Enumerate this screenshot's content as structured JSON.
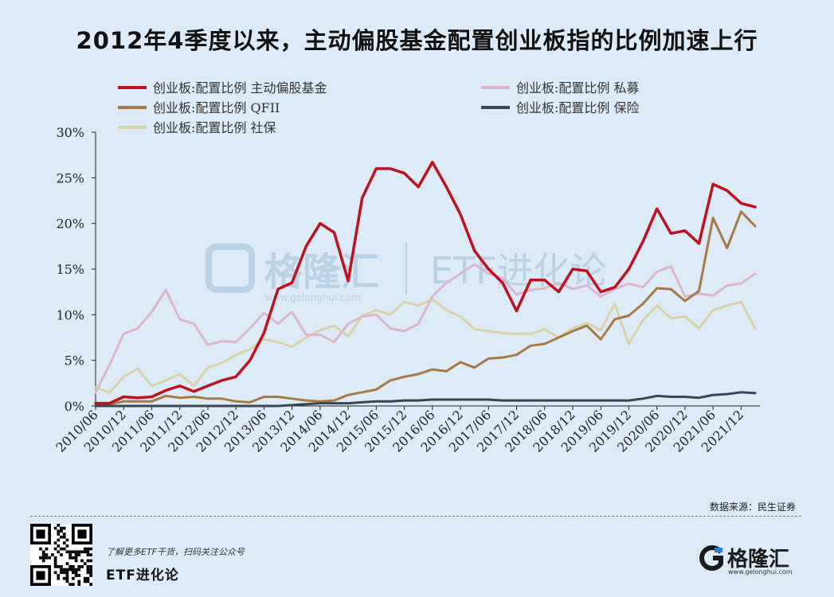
{
  "title": "2012年4季度以来，主动偏股基金配置创业板指的比例加速上行",
  "source": "数据来源：民生证券",
  "footer": {
    "slogan": "了解更多ETF干货，扫码关注公众号",
    "account": "ETF进化论"
  },
  "brand": {
    "name": "格隆汇",
    "url": "www.gelonghui.com"
  },
  "watermark": {
    "brand": "格隆汇",
    "url": "www.gelonghui.com",
    "account": "ETF进化论"
  },
  "chart_data": {
    "type": "line",
    "ylim": [
      0,
      30
    ],
    "yticks": [
      "0%",
      "5%",
      "10%",
      "15%",
      "20%",
      "25%",
      "30%"
    ],
    "x_labels": [
      "2010/06",
      "2010/12",
      "2011/06",
      "2011/12",
      "2012/06",
      "2012/12",
      "2013/06",
      "2013/12",
      "2014/06",
      "2014/12",
      "2015/06",
      "2015/12",
      "2016/06",
      "2016/12",
      "2017/06",
      "2017/12",
      "2018/06",
      "2018/12",
      "2019/06",
      "2019/12",
      "2020/06",
      "2020/12",
      "2021/06",
      "2021/12"
    ],
    "x_label_quarter_index": [
      0,
      2,
      4,
      6,
      8,
      10,
      12,
      14,
      16,
      18,
      20,
      22,
      24,
      26,
      28,
      30,
      32,
      34,
      36,
      38,
      40,
      42,
      44,
      46
    ],
    "x_quarters": [
      "2010/06",
      "2010/09",
      "2010/12",
      "2011/03",
      "2011/06",
      "2011/09",
      "2011/12",
      "2012/03",
      "2012/06",
      "2012/09",
      "2012/12",
      "2013/03",
      "2013/06",
      "2013/09",
      "2013/12",
      "2014/03",
      "2014/06",
      "2014/09",
      "2014/12",
      "2015/03",
      "2015/06",
      "2015/09",
      "2015/12",
      "2016/03",
      "2016/06",
      "2016/09",
      "2016/12",
      "2017/03",
      "2017/06",
      "2017/09",
      "2017/12",
      "2018/03",
      "2018/06",
      "2018/09",
      "2018/12",
      "2019/03",
      "2019/06",
      "2019/09",
      "2019/12",
      "2020/03",
      "2020/06",
      "2020/09",
      "2020/12",
      "2021/03",
      "2021/06",
      "2021/09",
      "2021/12",
      "2022/03"
    ],
    "series": [
      {
        "name": "创业板:配置比例 主动偏股基金",
        "color": "#c0111f",
        "width": 3.5,
        "values": [
          0.3,
          0.3,
          1.0,
          0.9,
          1.0,
          1.7,
          2.2,
          1.6,
          2.2,
          2.8,
          3.2,
          5.0,
          8.0,
          12.8,
          13.5,
          17.5,
          20.0,
          19.0,
          13.7,
          22.8,
          26.0,
          26.0,
          25.5,
          24.0,
          26.7,
          24.0,
          21.0,
          17.0,
          15.0,
          13.5,
          10.4,
          13.8,
          13.8,
          12.5,
          15.0,
          14.8,
          12.5,
          13.0,
          15.0,
          18.0,
          21.6,
          18.9,
          19.2,
          17.8,
          24.3,
          23.6,
          22.2,
          21.8
        ]
      },
      {
        "name": "创业板:配置比例 私募",
        "color": "#dcb6cf",
        "width": 3,
        "values": [
          1.5,
          4.5,
          7.9,
          8.5,
          10.3,
          12.7,
          9.5,
          9.0,
          6.7,
          7.1,
          7.0,
          8.5,
          10.2,
          9.0,
          10.3,
          7.8,
          7.8,
          7.0,
          9.0,
          9.8,
          10.0,
          8.5,
          8.2,
          9.0,
          12.0,
          13.5,
          14.5,
          15.5,
          14.5,
          14.0,
          12.2,
          12.7,
          12.9,
          13.5,
          12.8,
          13.2,
          12.0,
          12.8,
          13.4,
          13.0,
          14.7,
          15.3,
          12.0,
          12.3,
          12.1,
          13.2,
          13.4,
          14.5
        ]
      },
      {
        "name": "创业板:配置比例 QFII",
        "color": "#a67a45",
        "width": 3,
        "values": [
          0.2,
          0.2,
          0.5,
          0.5,
          0.5,
          1.1,
          0.9,
          1.0,
          0.8,
          0.8,
          0.5,
          0.4,
          1.0,
          1.0,
          0.8,
          0.6,
          0.5,
          0.6,
          1.2,
          1.5,
          1.8,
          2.8,
          3.2,
          3.5,
          4.0,
          3.8,
          4.8,
          4.2,
          5.2,
          5.3,
          5.6,
          6.6,
          6.8,
          7.5,
          8.2,
          8.8,
          7.3,
          9.5,
          9.9,
          11.2,
          12.9,
          12.8,
          11.5,
          12.6,
          20.6,
          17.3,
          21.3,
          19.7
        ]
      },
      {
        "name": "创业板:配置比例 保险",
        "color": "#3a4555",
        "width": 3,
        "values": [
          0,
          0,
          0,
          0,
          0,
          0,
          0,
          0,
          0,
          0,
          0,
          0,
          0,
          0,
          0.1,
          0.2,
          0.3,
          0.3,
          0.3,
          0.4,
          0.5,
          0.5,
          0.6,
          0.6,
          0.7,
          0.7,
          0.7,
          0.7,
          0.7,
          0.6,
          0.6,
          0.6,
          0.6,
          0.6,
          0.6,
          0.6,
          0.6,
          0.6,
          0.6,
          0.8,
          1.1,
          1.0,
          1.0,
          0.9,
          1.2,
          1.3,
          1.5,
          1.4
        ]
      },
      {
        "name": "创业板:配置比例 社保",
        "color": "#d8d4a8",
        "width": 3,
        "values": [
          2.0,
          1.5,
          3.2,
          4.1,
          2.2,
          2.8,
          3.5,
          2.2,
          4.2,
          4.7,
          5.6,
          6.2,
          7.3,
          7.0,
          6.5,
          7.5,
          8.3,
          8.8,
          7.6,
          9.9,
          10.5,
          10.0,
          11.4,
          11.0,
          11.7,
          10.5,
          9.8,
          8.4,
          8.2,
          8.0,
          7.9,
          7.9,
          8.4,
          7.5,
          8.5,
          9.1,
          8.3,
          11.2,
          6.8,
          9.4,
          11.0,
          9.6,
          9.8,
          8.5,
          10.5,
          11.0,
          11.4,
          8.5
        ]
      }
    ]
  }
}
